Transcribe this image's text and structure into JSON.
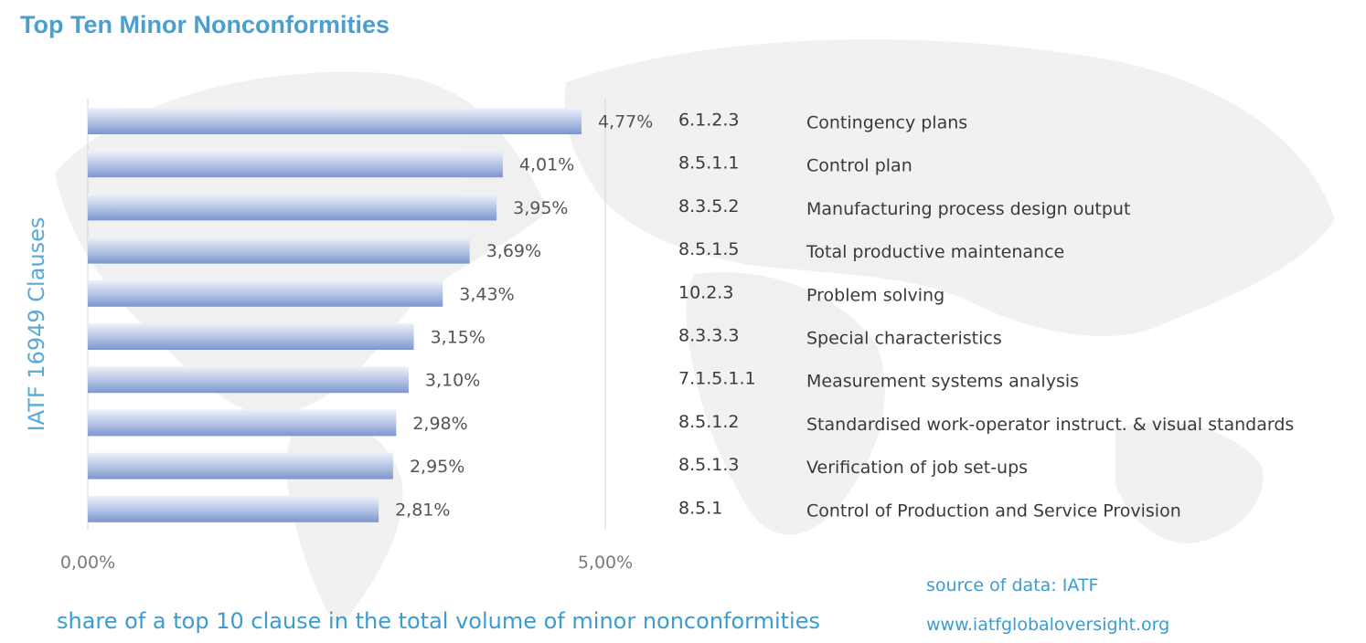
{
  "chart_data": {
    "type": "bar",
    "orientation": "horizontal",
    "title": "Top Ten Minor Nonconformities",
    "ylabel": "IATF 16949 Clauses",
    "xlabel": "share of a top 10 clause in the total volume of minor nonconformities",
    "xlim": [
      0,
      5
    ],
    "xticks": [
      "0,00%",
      "5,00%"
    ],
    "grid": "vertical at 0 and 5",
    "categories": [
      {
        "clause": "6.1.2.3",
        "name": "Contingency plans"
      },
      {
        "clause": "8.5.1.1",
        "name": "Control plan"
      },
      {
        "clause": "8.3.5.2",
        "name": "Manufacturing process design output"
      },
      {
        "clause": "8.5.1.5",
        "name": "Total productive maintenance"
      },
      {
        "clause": "10.2.3",
        "name": "Problem solving"
      },
      {
        "clause": "8.3.3.3",
        "name": "Special characteristics"
      },
      {
        "clause": "7.1.5.1.1",
        "name": "Measurement systems analysis"
      },
      {
        "clause": "8.5.1.2",
        "name": "Standardised work-operator instruct. & visual standards"
      },
      {
        "clause": "8.5.1.3",
        "name": "Verification of job set-ups"
      },
      {
        "clause": "8.5.1",
        "name": "Control of Production and Service Provision"
      }
    ],
    "values": [
      4.77,
      4.01,
      3.95,
      3.69,
      3.43,
      3.15,
      3.1,
      2.98,
      2.95,
      2.81
    ],
    "value_labels": [
      "4,77%",
      "4,01%",
      "3,95%",
      "3,69%",
      "3,43%",
      "3,15%",
      "3,10%",
      "2,98%",
      "2,95%",
      "2,81%"
    ]
  },
  "source": {
    "line1": "source of data: IATF",
    "line2": "www.iatfglobaloversight.org"
  },
  "colors": {
    "title": "#4a9fcf",
    "axis_label": "#5aaad6",
    "bar_light": "#e6ecf7",
    "bar_dark": "#7f98cf",
    "text": "#3a3a3a",
    "tick": "#7a7a7a"
  }
}
